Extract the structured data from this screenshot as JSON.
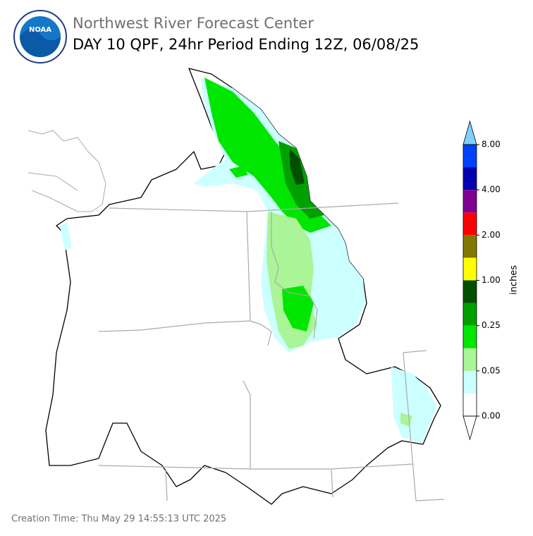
{
  "header": {
    "logo_text": "NOAA",
    "title": "Northwest River Forecast Center",
    "subtitle": "DAY 10 QPF, 24hr Period Ending 12Z, 06/08/25"
  },
  "colorbar": {
    "label": "inches",
    "colors": [
      "#ffffff",
      "#ccffff",
      "#aaf597",
      "#00e600",
      "#00a000",
      "#005000",
      "#ffff00",
      "#807800",
      "#ff0000",
      "#800090",
      "#0000b0",
      "#0040ff"
    ],
    "extend_min_color": "#ffffff",
    "extend_max_color": "#80d0ff",
    "tick_labels": [
      "0.00",
      "0.05",
      "0.25",
      "1.00",
      "2.00",
      "4.00",
      "8.00"
    ]
  },
  "footer": {
    "creation_time": "Creation Time: Thu May 29 14:55:13 UTC 2025"
  }
}
